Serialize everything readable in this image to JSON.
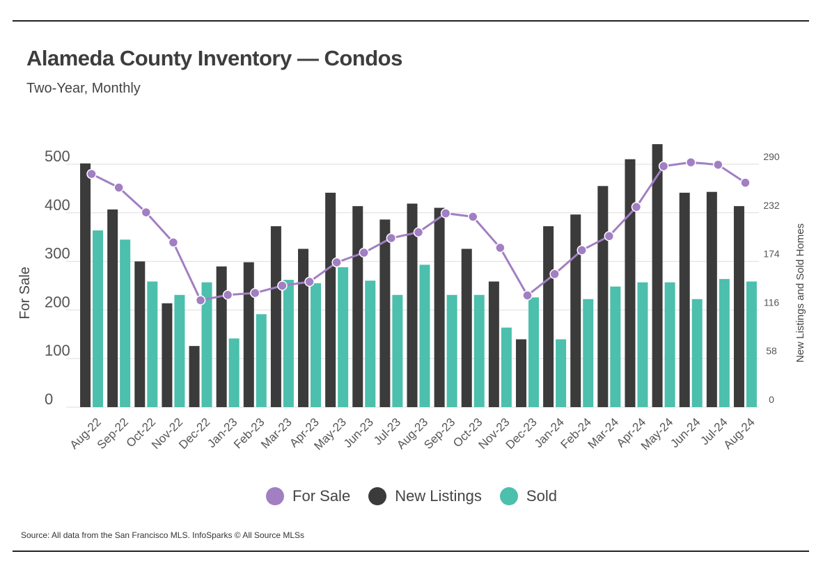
{
  "header": {
    "title": "Alameda County Inventory — Condos",
    "subtitle": "Two-Year, Monthly"
  },
  "footer": {
    "source": "Source:  All data from the San Francisco MLS. InfoSparks © All Source MLSs"
  },
  "colors": {
    "for_sale": "#a17fc2",
    "new_listings": "#3b3b3b",
    "sold": "#4cbfad",
    "grid": "#dddddd",
    "axis_text": "#555555"
  },
  "legend": [
    {
      "label": "For Sale",
      "color": "#a17fc2"
    },
    {
      "label": "New Listings",
      "color": "#3b3b3b"
    },
    {
      "label": "Sold",
      "color": "#4cbfad"
    }
  ],
  "chart_data": {
    "type": "bar",
    "title": "Alameda County Inventory — Condos",
    "subtitle": "Two-Year, Monthly",
    "categories": [
      "Aug-22",
      "Sep-22",
      "Oct-22",
      "Nov-22",
      "Dec-22",
      "Jan-23",
      "Feb-23",
      "Mar-23",
      "Apr-23",
      "May-23",
      "Jun-23",
      "Jul-23",
      "Aug-23",
      "Sep-23",
      "Oct-23",
      "Nov-23",
      "Dec-23",
      "Jan-24",
      "Feb-24",
      "Mar-24",
      "Apr-24",
      "May-24",
      "Jun-24",
      "Jul-24",
      "Aug-24"
    ],
    "ylabel_left": "For Sale",
    "ylabel_right": "New Listings and Sold Homes",
    "ylim_left": [
      0,
      500
    ],
    "ylim_right": [
      0,
      290
    ],
    "yticks_left": [
      0,
      100,
      200,
      300,
      400,
      500
    ],
    "yticks_right": [
      0,
      58,
      116,
      174,
      232,
      290
    ],
    "grid": true,
    "legend_position": "bottom",
    "series": [
      {
        "name": "New Listings",
        "type": "bar",
        "axis": "right",
        "values": [
          291,
          236,
          174,
          124,
          73,
          168,
          173,
          216,
          189,
          256,
          240,
          224,
          243,
          238,
          189,
          150,
          81,
          216,
          230,
          264,
          296,
          314,
          256,
          257,
          240
        ]
      },
      {
        "name": "Sold",
        "type": "bar",
        "axis": "right",
        "values": [
          211,
          200,
          150,
          134,
          149,
          82,
          111,
          152,
          148,
          167,
          151,
          134,
          170,
          134,
          134,
          95,
          131,
          81,
          129,
          144,
          149,
          149,
          129,
          153,
          150
        ]
      },
      {
        "name": "For Sale",
        "type": "line",
        "axis": "left",
        "values": [
          480,
          452,
          401,
          339,
          220,
          231,
          235,
          250,
          258,
          298,
          318,
          348,
          360,
          399,
          392,
          328,
          230,
          274,
          323,
          352,
          412,
          496,
          504,
          499,
          462
        ]
      }
    ]
  }
}
